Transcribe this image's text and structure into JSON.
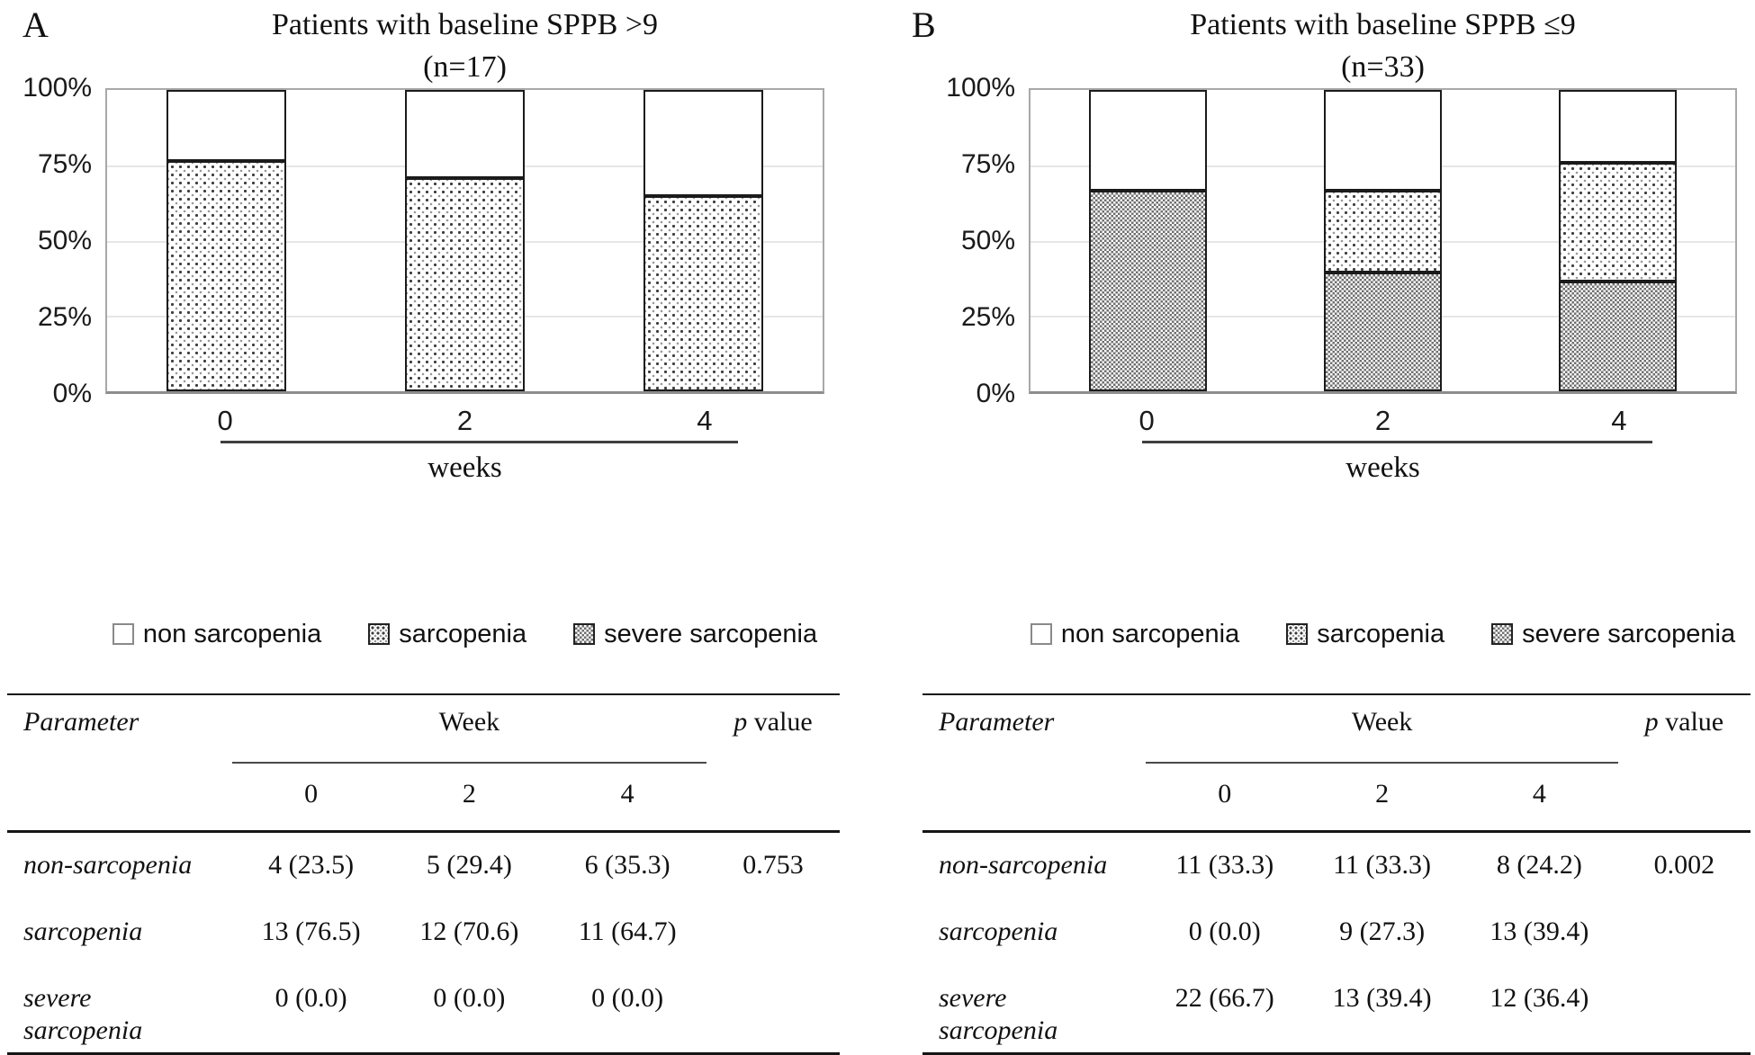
{
  "panels": [
    {
      "label": "A",
      "title_line1": "Patients with baseline SPPB >9",
      "title_line2": "(n=17)",
      "y_ticks": [
        "100%",
        "75%",
        "50%",
        "25%",
        "0%"
      ],
      "x_ticks": [
        "0",
        "2",
        "4"
      ],
      "xlabel": "weeks",
      "legend": [
        "non sarcopenia",
        "sarcopenia",
        "severe sarcopenia"
      ],
      "table": {
        "col_param": "Parameter",
        "col_week": "Week",
        "col_p_italic": "p",
        "col_p_rest": "value",
        "week_cols": [
          "0",
          "2",
          "4"
        ],
        "rows": [
          {
            "param": "non-sarcopenia",
            "w0": "4 (23.5)",
            "w2": "5 (29.4)",
            "w4": "6 (35.3)",
            "p": "0.753"
          },
          {
            "param": "sarcopenia",
            "w0": "13 (76.5)",
            "w2": "12 (70.6)",
            "w4": "11 (64.7)",
            "p": ""
          },
          {
            "param": "severe sarcopenia",
            "w0": "0 (0.0)",
            "w2": "0 (0.0)",
            "w4": "0 (0.0)",
            "p": ""
          }
        ]
      }
    },
    {
      "label": "B",
      "title_line1": "Patients with baseline SPPB ≤9",
      "title_line2": "(n=33)",
      "y_ticks": [
        "100%",
        "75%",
        "50%",
        "25%",
        "0%"
      ],
      "x_ticks": [
        "0",
        "2",
        "4"
      ],
      "xlabel": "weeks",
      "legend": [
        "non sarcopenia",
        "sarcopenia",
        "severe sarcopenia"
      ],
      "table": {
        "col_param": "Parameter",
        "col_week": "Week",
        "col_p_italic": "p",
        "col_p_rest": "value",
        "week_cols": [
          "0",
          "2",
          "4"
        ],
        "rows": [
          {
            "param": "non-sarcopenia",
            "w0": "11 (33.3)",
            "w2": "11 (33.3)",
            "w4": "8 (24.2)",
            "p": "0.002"
          },
          {
            "param": "sarcopenia",
            "w0": "0 (0.0)",
            "w2": "9 (27.3)",
            "w4": "13 (39.4)",
            "p": ""
          },
          {
            "param": "severe sarcopenia",
            "w0": "22 (66.7)",
            "w2": "13 (39.4)",
            "w4": "12 (36.4)",
            "p": ""
          }
        ]
      }
    }
  ],
  "chart_data": [
    {
      "type": "bar",
      "stacked": true,
      "panel": "A",
      "title": "Patients with baseline SPPB >9 (n=17)",
      "categories": [
        "0",
        "2",
        "4"
      ],
      "xlabel": "weeks",
      "ylabel": "",
      "ylim": [
        0,
        100
      ],
      "yticks": [
        "0%",
        "25%",
        "50%",
        "75%",
        "100%"
      ],
      "grid": true,
      "legend_position": "bottom",
      "series": [
        {
          "name": "non sarcopenia",
          "pattern": "solid-white",
          "values": [
            23.5,
            29.4,
            35.3
          ]
        },
        {
          "name": "sarcopenia",
          "pattern": "dots",
          "values": [
            76.5,
            70.6,
            64.7
          ]
        },
        {
          "name": "severe sarcopenia",
          "pattern": "checkerboard",
          "values": [
            0.0,
            0.0,
            0.0
          ]
        }
      ],
      "p_value": "0.753"
    },
    {
      "type": "bar",
      "stacked": true,
      "panel": "B",
      "title": "Patients with baseline SPPB ≤9 (n=33)",
      "categories": [
        "0",
        "2",
        "4"
      ],
      "xlabel": "weeks",
      "ylabel": "",
      "ylim": [
        0,
        100
      ],
      "yticks": [
        "0%",
        "25%",
        "50%",
        "75%",
        "100%"
      ],
      "grid": true,
      "legend_position": "bottom",
      "series": [
        {
          "name": "non sarcopenia",
          "pattern": "solid-white",
          "values": [
            33.3,
            33.3,
            24.2
          ]
        },
        {
          "name": "sarcopenia",
          "pattern": "dots",
          "values": [
            0.0,
            27.3,
            39.4
          ]
        },
        {
          "name": "severe sarcopenia",
          "pattern": "checkerboard",
          "values": [
            66.7,
            39.4,
            36.4
          ]
        }
      ],
      "p_value": "0.002"
    }
  ]
}
